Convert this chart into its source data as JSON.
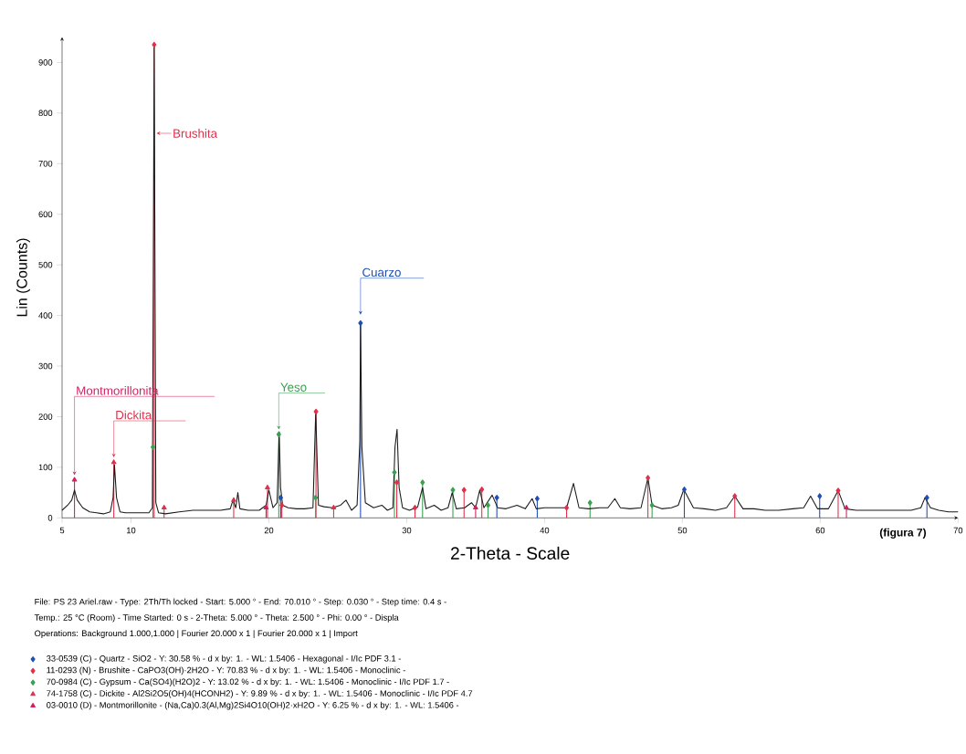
{
  "chart_data": {
    "type": "line",
    "xlabel": "2-Theta - Scale",
    "ylabel": "Lin (Counts)",
    "xlim": [
      5,
      70
    ],
    "ylim": [
      0,
      950
    ],
    "xticks": [
      5,
      10,
      20,
      30,
      40,
      50,
      60,
      70
    ],
    "yticks": [
      0,
      100,
      200,
      300,
      400,
      500,
      600,
      700,
      800,
      900
    ],
    "legend": "bottom",
    "line_style": "solid",
    "series": [
      {
        "color": "#1a1a1a",
        "marker": "none",
        "x": [
          5,
          5.4,
          5.7,
          5.9,
          6.1,
          6.5,
          7,
          7.5,
          8,
          8.5,
          8.7,
          8.8,
          8.95,
          9.2,
          9.6,
          10.5,
          11.3,
          11.55,
          11.68,
          11.8,
          12.0,
          12.5,
          13.5,
          14.5,
          15.5,
          16.5,
          17.2,
          17.4,
          17.6,
          17.75,
          17.9,
          18.5,
          19.3,
          19.8,
          20.0,
          20.3,
          20.6,
          20.75,
          20.85,
          21.0,
          21.4,
          22.0,
          22.6,
          23.2,
          23.4,
          23.6,
          24.0,
          24.6,
          25.2,
          25.6,
          26.0,
          26.4,
          26.6,
          26.65,
          26.75,
          27.0,
          27.6,
          28.2,
          28.6,
          29.0,
          29.15,
          29.3,
          29.45,
          29.7,
          30.2,
          30.8,
          31.15,
          31.4,
          32.0,
          32.5,
          33.0,
          33.3,
          33.6,
          34.2,
          34.7,
          35.0,
          35.3,
          35.6,
          36.2,
          36.6,
          37.2,
          38.0,
          38.6,
          39.1,
          39.4,
          40.0,
          40.8,
          41.6,
          42.1,
          42.5,
          43.2,
          44.0,
          44.6,
          45.1,
          45.5,
          46.2,
          47.0,
          47.5,
          47.8,
          48.5,
          49.2,
          49.7,
          50.1,
          50.8,
          51.6,
          52.4,
          53.2,
          53.8,
          54.4,
          55.2,
          56.0,
          57.0,
          58.0,
          58.8,
          59.3,
          59.8,
          60.6,
          61.3,
          61.8,
          62.6,
          63.6,
          64.6,
          65.6,
          66.6,
          67.3,
          67.6,
          68.0,
          68.6,
          69.3,
          70
        ],
        "values": [
          15,
          25,
          35,
          55,
          35,
          20,
          12,
          10,
          8,
          12,
          40,
          105,
          40,
          12,
          10,
          10,
          10,
          20,
          935,
          30,
          10,
          8,
          12,
          15,
          15,
          15,
          18,
          35,
          20,
          50,
          18,
          15,
          15,
          25,
          55,
          20,
          30,
          170,
          60,
          25,
          20,
          18,
          18,
          20,
          210,
          25,
          22,
          20,
          25,
          35,
          15,
          25,
          150,
          385,
          140,
          30,
          20,
          25,
          15,
          20,
          140,
          175,
          60,
          20,
          15,
          22,
          60,
          18,
          25,
          15,
          20,
          50,
          18,
          20,
          30,
          20,
          55,
          20,
          45,
          20,
          18,
          25,
          18,
          38,
          18,
          20,
          20,
          20,
          68,
          20,
          18,
          20,
          20,
          38,
          20,
          18,
          20,
          79,
          25,
          18,
          20,
          25,
          56,
          20,
          18,
          15,
          20,
          43,
          18,
          18,
          15,
          15,
          18,
          20,
          43,
          18,
          18,
          54,
          18,
          15,
          15,
          15,
          15,
          15,
          20,
          40,
          20,
          15,
          12,
          12
        ]
      },
      {
        "type": "lollipop",
        "name": "33-0539 (C) - Quartz - SiO2 - Y: 30.58 % - d x by: 1. - WL: 1.5406 - Hexagonal - I/Ic PDF 3.1 -",
        "color": "#1f4fb4",
        "marker": "diamond",
        "x": [
          20.86,
          26.65,
          36.54,
          39.47,
          50.14,
          59.96,
          67.74
        ],
        "values": [
          40,
          385,
          40,
          38,
          56,
          43,
          40
        ]
      },
      {
        "type": "lollipop",
        "name": "11-0293 (N) - Brushite - CaPO3(OH)·2H2O - Y: 70.83 % - d x by: 1. - WL: 1.5406 - Monoclinic -",
        "color": "#e0304a",
        "marker": "diamond",
        "x": [
          11.68,
          20.94,
          23.42,
          29.28,
          30.6,
          34.16,
          35.45,
          41.6,
          47.5,
          53.8,
          61.3
        ],
        "values": [
          935,
          25,
          210,
          70,
          20,
          55,
          56,
          20,
          79,
          43,
          54
        ]
      },
      {
        "type": "lollipop",
        "name": "70-0984 (C) - Gypsum - Ca(SO4)(H2O)2 - Y: 13.02 % - d x by: 1. - WL: 1.5406 - Monoclinic - I/Ic PDF 1.7 -",
        "color": "#3aa050",
        "marker": "diamond",
        "x": [
          11.59,
          20.72,
          23.39,
          29.11,
          31.15,
          33.35,
          35.9,
          43.3,
          47.8
        ],
        "values": [
          140,
          165,
          40,
          90,
          70,
          55,
          25,
          30,
          25
        ]
      },
      {
        "type": "lollipop",
        "name": "74-1758 (C) - Dickite - Al2Si2O5(OH)4(HCONH2) - Y: 9.89 % - d x by: 1. - WL: 1.5406 - Monoclinic - I/Ic PDF 4.7",
        "color": "#e0304a",
        "marker": "triangle",
        "x": [
          8.75,
          12.4,
          17.45,
          19.9,
          24.7
        ],
        "values": [
          110,
          20,
          35,
          60,
          20
        ]
      },
      {
        "type": "lollipop",
        "name": "03-0010 (D) - Montmorillonite - (Na,Ca)0.3(Al,Mg)2Si4O10(OH)2·xH2O - Y: 6.25 % - d x by: 1. - WL: 1.5406 -",
        "color": "#d02060",
        "marker": "triangle",
        "x": [
          5.9,
          19.8,
          35.0,
          61.9
        ],
        "values": [
          75,
          20,
          20,
          20
        ]
      }
    ],
    "annotations": [
      {
        "text": "Brushita",
        "x": 11.68,
        "y": 760
      },
      {
        "text": "Cuarzo",
        "x": 26.65,
        "y": 392
      },
      {
        "text": "Yeso",
        "x": 20.72,
        "y": 165
      },
      {
        "text": "Montmorillonita",
        "x": 5.9,
        "y": 75
      },
      {
        "text": "Dickita",
        "x": 8.75,
        "y": 110
      },
      "(figura 7)",
      "File: PS 23 Ariel.raw - Type: 2Th/Th locked - Start: 5.000 ° - End: 70.010 ° - Step: 0.030 ° - Step time: 0.4 s -",
      "Temp.: 25 °C (Room) - Time Started: 0 s - 2-Theta: 5.000 ° - Theta: 2.500 ° - Phi: 0.00 ° - Displa",
      "Operations: Background 1.000,1.000 | Fourier 20.000 x 1 | Fourier 20.000 x 1 | Import"
    ]
  }
}
